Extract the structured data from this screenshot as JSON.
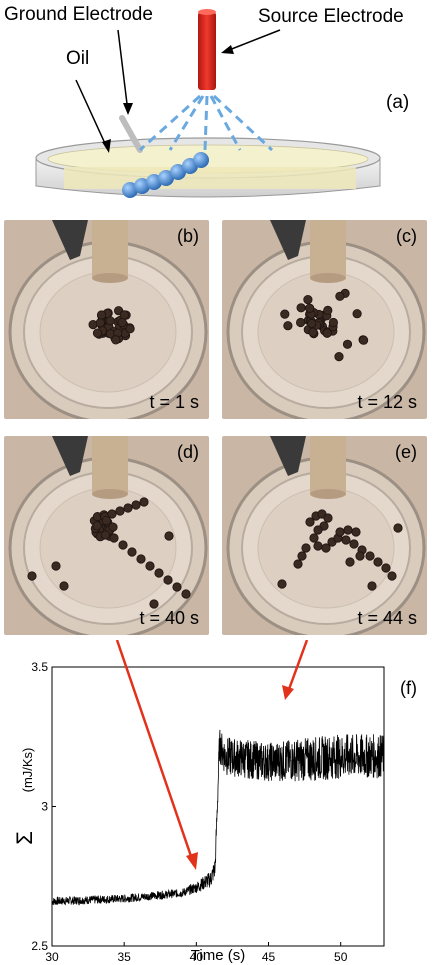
{
  "diagram": {
    "label_ground": "Ground Electrode",
    "label_source": "Source Electrode",
    "label_oil": "Oil",
    "panel": "(a)"
  },
  "photos": [
    {
      "panel": "(b)",
      "time": "t = 1 s"
    },
    {
      "panel": "(c)",
      "time": "t = 12 s"
    },
    {
      "panel": "(d)",
      "time": "t = 40 s"
    },
    {
      "panel": "(e)",
      "time": "t = 44 s"
    }
  ],
  "colors": {
    "arrow": "#e3321c",
    "electrode": "#e2231a",
    "bead": "#3a7fc9",
    "oil": "#f4f1cf"
  },
  "chart_data": {
    "type": "line",
    "panel": "(f)",
    "xlabel": "Time (s)",
    "ylabel_symbol": "Σ",
    "ylabel_unit": "(mJ/Ks)",
    "xlim": [
      30,
      53
    ],
    "ylim": [
      2.5,
      3.5
    ],
    "xticks": [
      "30",
      "35",
      "40",
      "45",
      "50"
    ],
    "yticks": [
      "2.5",
      "3",
      "3.5"
    ],
    "series": [
      {
        "x": [
          30,
          35,
          39,
          40,
          41,
          41.3,
          41.6,
          42,
          45,
          48,
          50,
          53
        ],
        "y": [
          2.66,
          2.67,
          2.69,
          2.71,
          2.74,
          2.78,
          3.22,
          3.18,
          3.16,
          3.17,
          3.18,
          3.18
        ],
        "noise": [
          0.015,
          0.015,
          0.015,
          0.02,
          0.03,
          0.04,
          0.06,
          0.07,
          0.07,
          0.08,
          0.08,
          0.08
        ]
      }
    ]
  }
}
